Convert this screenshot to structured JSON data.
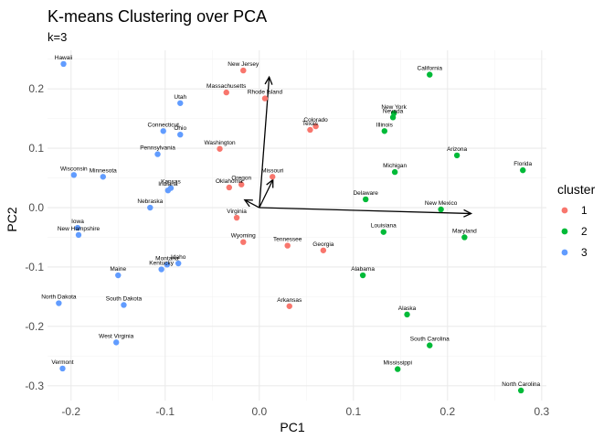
{
  "chart_data": {
    "type": "scatter",
    "title": "K-means Clustering over PCA",
    "subtitle": "k=3",
    "xlabel": "PC1",
    "ylabel": "PC2",
    "xlim": [
      -0.225,
      0.305
    ],
    "ylim": [
      -0.325,
      0.265
    ],
    "xticks": [
      -0.2,
      -0.1,
      0.0,
      0.1,
      0.2,
      0.3
    ],
    "xtick_labels": [
      "-0.2",
      "-0.1",
      "0.0",
      "0.1",
      "0.2",
      "0.3"
    ],
    "yticks": [
      -0.3,
      -0.2,
      -0.1,
      0.0,
      0.1,
      0.2
    ],
    "ytick_labels": [
      "-0.3",
      "-0.2",
      "-0.1",
      "0.0",
      "0.1",
      "0.2"
    ],
    "grid": true,
    "legend": {
      "title": "cluster",
      "position": "right",
      "entries": [
        {
          "label": "1",
          "color": "#F8766D"
        },
        {
          "label": "2",
          "color": "#00BA38"
        },
        {
          "label": "3",
          "color": "#619CFF"
        }
      ]
    },
    "cluster_colors": {
      "1": "#F8766D",
      "2": "#00BA38",
      "3": "#619CFF"
    },
    "arrows": [
      {
        "x": 0.0105,
        "y": 0.22
      },
      {
        "x": 0.0145,
        "y": 0.047
      },
      {
        "x": 0.225,
        "y": -0.01
      },
      {
        "x": -0.0155,
        "y": 0.013
      }
    ],
    "points": [
      {
        "label": "Hawaii",
        "x": -0.208,
        "y": 0.242,
        "cluster": 3
      },
      {
        "label": "New Jersey",
        "x": -0.017,
        "y": 0.231,
        "cluster": 1
      },
      {
        "label": "California",
        "x": 0.181,
        "y": 0.224,
        "cluster": 2
      },
      {
        "label": "Massachusetts",
        "x": -0.035,
        "y": 0.194,
        "cluster": 1
      },
      {
        "label": "Rhode Island",
        "x": 0.006,
        "y": 0.184,
        "cluster": 1
      },
      {
        "label": "Utah",
        "x": -0.084,
        "y": 0.176,
        "cluster": 3
      },
      {
        "label": "New York",
        "x": 0.143,
        "y": 0.159,
        "cluster": 2
      },
      {
        "label": "Nevada",
        "x": 0.142,
        "y": 0.152,
        "cluster": 2
      },
      {
        "label": "Colorado",
        "x": 0.06,
        "y": 0.137,
        "cluster": 1
      },
      {
        "label": "Texas",
        "x": 0.054,
        "y": 0.131,
        "cluster": 1
      },
      {
        "label": "Illinois",
        "x": 0.133,
        "y": 0.129,
        "cluster": 2
      },
      {
        "label": "Connecticut",
        "x": -0.102,
        "y": 0.129,
        "cluster": 3
      },
      {
        "label": "Ohio",
        "x": -0.084,
        "y": 0.123,
        "cluster": 3
      },
      {
        "label": "Washington",
        "x": -0.042,
        "y": 0.099,
        "cluster": 1
      },
      {
        "label": "Pennsylvania",
        "x": -0.108,
        "y": 0.09,
        "cluster": 3
      },
      {
        "label": "Arizona",
        "x": 0.21,
        "y": 0.088,
        "cluster": 2
      },
      {
        "label": "Florida",
        "x": 0.28,
        "y": 0.063,
        "cluster": 2
      },
      {
        "label": "Michigan",
        "x": 0.144,
        "y": 0.06,
        "cluster": 2
      },
      {
        "label": "Wisconsin",
        "x": -0.197,
        "y": 0.055,
        "cluster": 3
      },
      {
        "label": "Minnesota",
        "x": -0.166,
        "y": 0.052,
        "cluster": 3
      },
      {
        "label": "Missouri",
        "x": 0.014,
        "y": 0.052,
        "cluster": 1
      },
      {
        "label": "Oregon",
        "x": -0.019,
        "y": 0.039,
        "cluster": 1
      },
      {
        "label": "Oklahoma",
        "x": -0.032,
        "y": 0.034,
        "cluster": 1
      },
      {
        "label": "Kansas",
        "x": -0.094,
        "y": 0.033,
        "cluster": 3
      },
      {
        "label": "Indiana",
        "x": -0.097,
        "y": 0.029,
        "cluster": 3
      },
      {
        "label": "Delaware",
        "x": 0.113,
        "y": 0.014,
        "cluster": 2
      },
      {
        "label": "Nebraska",
        "x": -0.116,
        "y": 0.0,
        "cluster": 3
      },
      {
        "label": "New Mexico",
        "x": 0.193,
        "y": -0.003,
        "cluster": 2
      },
      {
        "label": "Virginia",
        "x": -0.024,
        "y": -0.017,
        "cluster": 1
      },
      {
        "label": "Iowa",
        "x": -0.193,
        "y": -0.034,
        "cluster": 3
      },
      {
        "label": "Louisiana",
        "x": 0.132,
        "y": -0.041,
        "cluster": 2
      },
      {
        "label": "New Hampshire",
        "x": -0.192,
        "y": -0.046,
        "cluster": 3
      },
      {
        "label": "Maryland",
        "x": 0.218,
        "y": -0.05,
        "cluster": 2
      },
      {
        "label": "Wyoming",
        "x": -0.017,
        "y": -0.058,
        "cluster": 1
      },
      {
        "label": "Tennessee",
        "x": 0.03,
        "y": -0.064,
        "cluster": 1
      },
      {
        "label": "Georgia",
        "x": 0.068,
        "y": -0.072,
        "cluster": 1
      },
      {
        "label": "Montana",
        "x": -0.098,
        "y": -0.096,
        "cluster": 3
      },
      {
        "label": "Idaho",
        "x": -0.086,
        "y": -0.094,
        "cluster": 3
      },
      {
        "label": "Kentucky",
        "x": -0.104,
        "y": -0.104,
        "cluster": 3
      },
      {
        "label": "Alabama",
        "x": 0.11,
        "y": -0.114,
        "cluster": 2
      },
      {
        "label": "Maine",
        "x": -0.15,
        "y": -0.114,
        "cluster": 3
      },
      {
        "label": "North Dakota",
        "x": -0.213,
        "y": -0.161,
        "cluster": 3
      },
      {
        "label": "South Dakota",
        "x": -0.144,
        "y": -0.164,
        "cluster": 3
      },
      {
        "label": "Arkansas",
        "x": 0.032,
        "y": -0.166,
        "cluster": 1
      },
      {
        "label": "Alaska",
        "x": 0.157,
        "y": -0.18,
        "cluster": 2
      },
      {
        "label": "West Virginia",
        "x": -0.152,
        "y": -0.227,
        "cluster": 3
      },
      {
        "label": "South Carolina",
        "x": 0.181,
        "y": -0.232,
        "cluster": 2
      },
      {
        "label": "Vermont",
        "x": -0.209,
        "y": -0.271,
        "cluster": 3
      },
      {
        "label": "Mississippi",
        "x": 0.147,
        "y": -0.272,
        "cluster": 2
      },
      {
        "label": "North Carolina",
        "x": 0.278,
        "y": -0.308,
        "cluster": 2
      }
    ]
  }
}
